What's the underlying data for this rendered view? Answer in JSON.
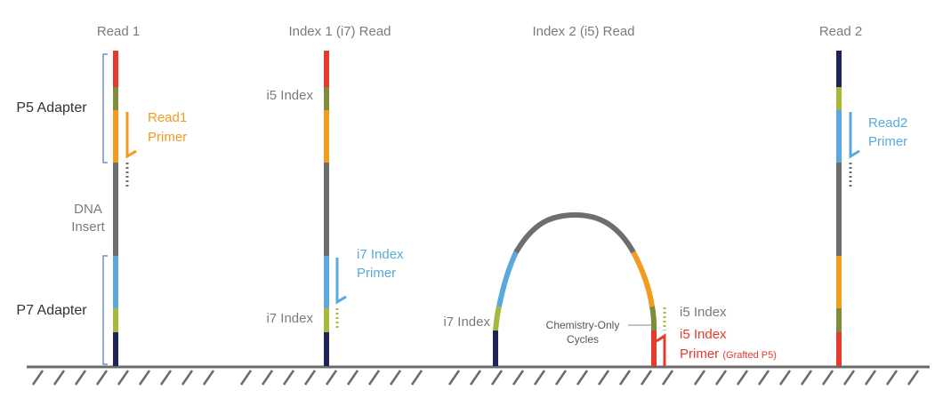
{
  "colors": {
    "red": "#e63a2e",
    "olive": "#7f8c3a",
    "lime": "#a7b83a",
    "orange": "#f39a1f",
    "gray": "#6e6e6e",
    "blue": "#5aa9dc",
    "navy": "#1e2358",
    "bracket": "#6b8fd0",
    "ground": "#6a6a6a"
  },
  "panels": {
    "read1": {
      "title": "Read 1",
      "p5_label": "P5 Adapter",
      "dna_label_1": "DNA",
      "dna_label_2": "Insert",
      "p7_label": "P7 Adapter",
      "primer_1": "Read1",
      "primer_2": "Primer"
    },
    "index1": {
      "title": "Index 1 (i7) Read",
      "i5_label": "i5 Index",
      "i7_label": "i7 Index",
      "primer_1": "i7 Index",
      "primer_2": "Primer"
    },
    "index2": {
      "title": "Index 2 (i5) Read",
      "i7_label": "i7 Index",
      "chem_1": "Chemistry-Only",
      "chem_2": "Cycles",
      "i5_label": "i5 Index",
      "primer_1": "i5 Index",
      "primer_2": "Primer",
      "primer_note": "(Grafted P5)"
    },
    "read2": {
      "title": "Read 2",
      "primer_1": "Read2",
      "primer_2": "Primer"
    }
  }
}
